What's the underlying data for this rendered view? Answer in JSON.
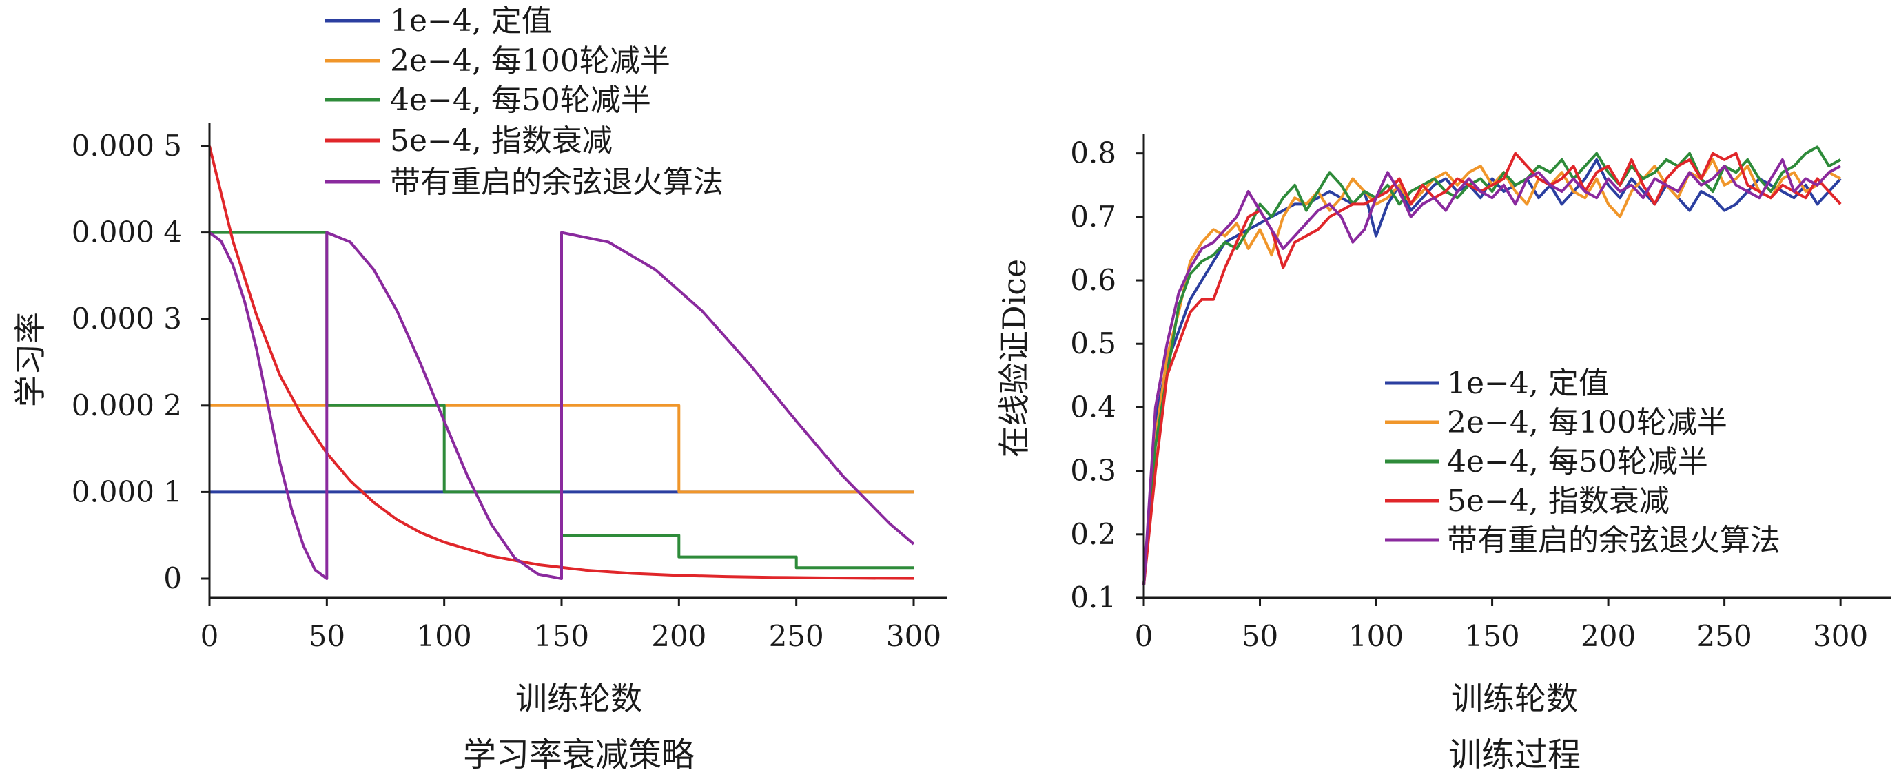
{
  "chart_data": [
    {
      "type": "line",
      "caption": "学习率衰减策略",
      "xlabel": "训练轮数",
      "ylabel": "学习率",
      "xlim": [
        0,
        300
      ],
      "ylim": [
        0,
        0.0005
      ],
      "xticks": [
        0,
        50,
        100,
        150,
        200,
        250,
        300
      ],
      "xtick_labels": [
        "0",
        "50",
        "100",
        "150",
        "200",
        "250",
        "300"
      ],
      "yticks": [
        0,
        0.0001,
        0.0002,
        0.0003,
        0.0004,
        0.0005
      ],
      "ytick_labels": [
        "0",
        "0.000 1",
        "0.000 2",
        "0.000 3",
        "0.000 4",
        "0.000 5"
      ],
      "legend_position": "top-left, above plot",
      "series": [
        {
          "name": "1e−4, 定值",
          "color": "#2b3fa0",
          "x": [
            0,
            300
          ],
          "y": [
            0.0001,
            0.0001
          ]
        },
        {
          "name": "2e−4, 每100轮减半",
          "color": "#f0962a",
          "x": [
            0,
            200,
            200,
            300
          ],
          "y": [
            0.0002,
            0.0002,
            0.0001,
            0.0001
          ]
        },
        {
          "name": "4e−4, 每50轮减半",
          "color": "#2e8b3a",
          "x": [
            0,
            50,
            50,
            100,
            100,
            150,
            150,
            200,
            200,
            250,
            250,
            300
          ],
          "y": [
            0.0004,
            0.0004,
            0.0002,
            0.0002,
            0.0001,
            0.0001,
            5e-05,
            5e-05,
            2.5e-05,
            2.5e-05,
            1.25e-05,
            1.25e-05
          ]
        },
        {
          "name": "5e−4, 指数衰减",
          "color": "#e0262a",
          "x": [
            0,
            10,
            20,
            30,
            40,
            50,
            60,
            70,
            80,
            90,
            100,
            120,
            140,
            160,
            180,
            200,
            220,
            240,
            260,
            280,
            300
          ],
          "y": [
            0.0005,
            0.00039,
            0.000305,
            0.000235,
            0.000185,
            0.000145,
            0.000113,
            8.8e-05,
            6.8e-05,
            5.3e-05,
            4.2e-05,
            2.6e-05,
            1.6e-05,
            9.8e-06,
            6e-06,
            3.7e-06,
            2.3e-06,
            1.4e-06,
            9e-07,
            5e-07,
            3e-07
          ]
        },
        {
          "name": "带有重启的余弦退火算法",
          "color": "#8a2a9e",
          "x": [
            0,
            5,
            10,
            15,
            20,
            25,
            30,
            35,
            40,
            45,
            50,
            50,
            60,
            70,
            80,
            90,
            100,
            110,
            120,
            130,
            140,
            150,
            150,
            170,
            190,
            210,
            230,
            250,
            270,
            290,
            300
          ],
          "y": [
            0.0004,
            0.00039,
            0.000362,
            0.00032,
            0.000266,
            0.0002,
            0.000134,
            8e-05,
            3.8e-05,
            1e-05,
            0,
            0.0004,
            0.000389,
            0.000357,
            0.000309,
            0.000248,
            0.000182,
            0.000118,
            6.3e-05,
            2.4e-05,
            5e-06,
            0,
            0.0004,
            0.000389,
            0.000357,
            0.000309,
            0.000248,
            0.000182,
            0.000118,
            6.3e-05,
            4e-05
          ]
        }
      ]
    },
    {
      "type": "line",
      "caption": "训练过程",
      "xlabel": "训练轮数",
      "ylabel": "在线验证Dice",
      "xlim": [
        0,
        305
      ],
      "ylim": [
        0.1,
        0.83
      ],
      "xticks": [
        0,
        50,
        100,
        150,
        200,
        250,
        300
      ],
      "xtick_labels": [
        "0",
        "50",
        "100",
        "150",
        "200",
        "250",
        "300"
      ],
      "yticks": [
        0.1,
        0.2,
        0.3,
        0.4,
        0.5,
        0.6,
        0.7,
        0.8
      ],
      "ytick_labels": [
        "0.1",
        "0.2",
        "0.3",
        "0.4",
        "0.5",
        "0.6",
        "0.7",
        "0.8"
      ],
      "legend_position": "center-right",
      "series": [
        {
          "name": "1e−4, 定值",
          "color": "#2b3fa0",
          "x": [
            0,
            5,
            10,
            15,
            20,
            25,
            30,
            35,
            40,
            45,
            50,
            55,
            60,
            65,
            70,
            75,
            80,
            85,
            90,
            95,
            100,
            105,
            110,
            115,
            120,
            125,
            130,
            135,
            140,
            145,
            150,
            155,
            160,
            165,
            170,
            175,
            180,
            185,
            190,
            195,
            200,
            205,
            210,
            215,
            220,
            225,
            230,
            235,
            240,
            245,
            250,
            255,
            260,
            265,
            270,
            275,
            280,
            285,
            290,
            295,
            300
          ],
          "y": [
            0.12,
            0.38,
            0.47,
            0.52,
            0.57,
            0.6,
            0.63,
            0.66,
            0.67,
            0.68,
            0.69,
            0.7,
            0.71,
            0.72,
            0.72,
            0.73,
            0.74,
            0.73,
            0.72,
            0.74,
            0.67,
            0.72,
            0.75,
            0.71,
            0.73,
            0.75,
            0.76,
            0.74,
            0.75,
            0.73,
            0.76,
            0.74,
            0.75,
            0.76,
            0.73,
            0.75,
            0.72,
            0.74,
            0.76,
            0.79,
            0.75,
            0.73,
            0.76,
            0.74,
            0.72,
            0.75,
            0.73,
            0.71,
            0.74,
            0.73,
            0.71,
            0.72,
            0.74,
            0.76,
            0.75,
            0.74,
            0.73,
            0.75,
            0.72,
            0.74,
            0.76
          ]
        },
        {
          "name": "2e−4, 每100轮减半",
          "color": "#f0962a",
          "x": [
            0,
            5,
            10,
            15,
            20,
            25,
            30,
            35,
            40,
            45,
            50,
            55,
            60,
            65,
            70,
            75,
            80,
            85,
            90,
            95,
            100,
            105,
            110,
            115,
            120,
            125,
            130,
            135,
            140,
            145,
            150,
            155,
            160,
            165,
            170,
            175,
            180,
            185,
            190,
            195,
            200,
            205,
            210,
            215,
            220,
            225,
            230,
            235,
            240,
            245,
            250,
            255,
            260,
            265,
            270,
            275,
            280,
            285,
            290,
            295,
            300
          ],
          "y": [
            0.12,
            0.35,
            0.48,
            0.55,
            0.63,
            0.66,
            0.68,
            0.67,
            0.69,
            0.65,
            0.68,
            0.64,
            0.7,
            0.73,
            0.72,
            0.74,
            0.71,
            0.73,
            0.76,
            0.74,
            0.72,
            0.73,
            0.75,
            0.72,
            0.74,
            0.76,
            0.77,
            0.75,
            0.77,
            0.78,
            0.75,
            0.77,
            0.74,
            0.72,
            0.76,
            0.75,
            0.77,
            0.74,
            0.73,
            0.76,
            0.72,
            0.7,
            0.74,
            0.76,
            0.78,
            0.75,
            0.73,
            0.77,
            0.76,
            0.79,
            0.75,
            0.76,
            0.78,
            0.74,
            0.73,
            0.76,
            0.77,
            0.74,
            0.75,
            0.77,
            0.76
          ]
        },
        {
          "name": "4e−4, 每50轮减半",
          "color": "#2e8b3a",
          "x": [
            0,
            5,
            10,
            15,
            20,
            25,
            30,
            35,
            40,
            45,
            50,
            55,
            60,
            65,
            70,
            75,
            80,
            85,
            90,
            95,
            100,
            105,
            110,
            115,
            120,
            125,
            130,
            135,
            140,
            145,
            150,
            155,
            160,
            165,
            170,
            175,
            180,
            185,
            190,
            195,
            200,
            205,
            210,
            215,
            220,
            225,
            230,
            235,
            240,
            245,
            250,
            255,
            260,
            265,
            270,
            275,
            280,
            285,
            290,
            295,
            300
          ],
          "y": [
            0.12,
            0.34,
            0.45,
            0.56,
            0.61,
            0.63,
            0.64,
            0.66,
            0.65,
            0.68,
            0.72,
            0.7,
            0.73,
            0.75,
            0.71,
            0.74,
            0.77,
            0.75,
            0.72,
            0.74,
            0.73,
            0.75,
            0.72,
            0.74,
            0.75,
            0.76,
            0.74,
            0.73,
            0.75,
            0.76,
            0.74,
            0.77,
            0.75,
            0.76,
            0.78,
            0.77,
            0.79,
            0.76,
            0.78,
            0.8,
            0.77,
            0.75,
            0.78,
            0.76,
            0.77,
            0.79,
            0.78,
            0.8,
            0.76,
            0.74,
            0.78,
            0.77,
            0.79,
            0.76,
            0.74,
            0.77,
            0.78,
            0.8,
            0.81,
            0.78,
            0.79
          ]
        },
        {
          "name": "5e−4, 指数衰减",
          "color": "#e0262a",
          "x": [
            0,
            5,
            10,
            15,
            20,
            25,
            30,
            35,
            40,
            45,
            50,
            55,
            60,
            65,
            70,
            75,
            80,
            85,
            90,
            95,
            100,
            105,
            110,
            115,
            120,
            125,
            130,
            135,
            140,
            145,
            150,
            155,
            160,
            165,
            170,
            175,
            180,
            185,
            190,
            195,
            200,
            205,
            210,
            215,
            220,
            225,
            230,
            235,
            240,
            245,
            250,
            255,
            260,
            265,
            270,
            275,
            280,
            285,
            290,
            295,
            300
          ],
          "y": [
            0.12,
            0.3,
            0.45,
            0.5,
            0.55,
            0.57,
            0.57,
            0.62,
            0.66,
            0.7,
            0.71,
            0.68,
            0.62,
            0.66,
            0.67,
            0.68,
            0.7,
            0.71,
            0.72,
            0.72,
            0.73,
            0.74,
            0.76,
            0.72,
            0.75,
            0.73,
            0.74,
            0.76,
            0.75,
            0.74,
            0.75,
            0.76,
            0.8,
            0.78,
            0.76,
            0.75,
            0.76,
            0.78,
            0.74,
            0.77,
            0.78,
            0.75,
            0.79,
            0.75,
            0.72,
            0.76,
            0.78,
            0.79,
            0.76,
            0.8,
            0.79,
            0.8,
            0.75,
            0.74,
            0.73,
            0.75,
            0.74,
            0.73,
            0.76,
            0.74,
            0.72
          ]
        },
        {
          "name": "带有重启的余弦退火算法",
          "color": "#8a2a9e",
          "x": [
            0,
            5,
            10,
            15,
            20,
            25,
            30,
            35,
            40,
            45,
            50,
            55,
            60,
            65,
            70,
            75,
            80,
            85,
            90,
            95,
            100,
            105,
            110,
            115,
            120,
            125,
            130,
            135,
            140,
            145,
            150,
            155,
            160,
            165,
            170,
            175,
            180,
            185,
            190,
            195,
            200,
            205,
            210,
            215,
            220,
            225,
            230,
            235,
            240,
            245,
            250,
            255,
            260,
            265,
            270,
            275,
            280,
            285,
            290,
            295,
            300
          ],
          "y": [
            0.12,
            0.4,
            0.5,
            0.58,
            0.62,
            0.65,
            0.66,
            0.68,
            0.7,
            0.74,
            0.71,
            0.68,
            0.65,
            0.67,
            0.69,
            0.71,
            0.72,
            0.7,
            0.66,
            0.68,
            0.73,
            0.77,
            0.74,
            0.7,
            0.72,
            0.73,
            0.71,
            0.74,
            0.76,
            0.74,
            0.73,
            0.75,
            0.72,
            0.76,
            0.77,
            0.75,
            0.74,
            0.76,
            0.74,
            0.73,
            0.76,
            0.74,
            0.75,
            0.73,
            0.76,
            0.75,
            0.74,
            0.77,
            0.75,
            0.76,
            0.78,
            0.75,
            0.74,
            0.73,
            0.76,
            0.79,
            0.74,
            0.76,
            0.75,
            0.77,
            0.78
          ]
        }
      ]
    }
  ]
}
